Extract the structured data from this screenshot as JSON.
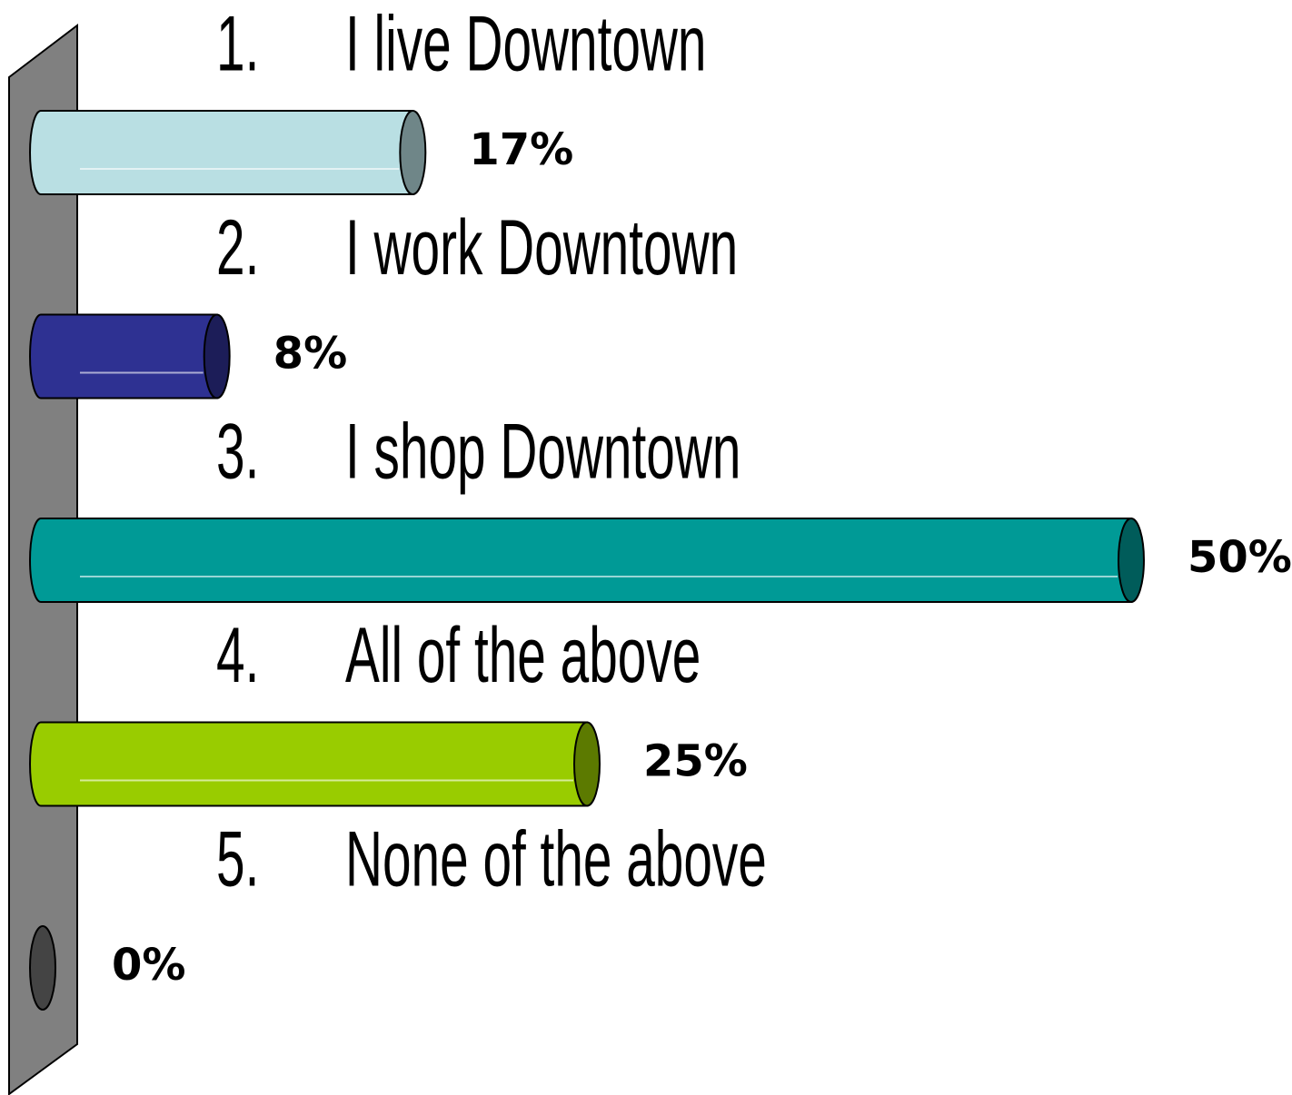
{
  "chart_data": {
    "type": "bar",
    "category_numbers": [
      "1.",
      "2.",
      "3.",
      "4.",
      "5."
    ],
    "categories": [
      "I live Downtown",
      "I work Downtown",
      "I shop Downtown",
      "All of the above",
      "None of the above"
    ],
    "values": [
      17,
      8,
      50,
      25,
      0
    ],
    "value_labels": [
      "17%",
      "8%",
      "50%",
      "25%",
      "0%"
    ],
    "colors": [
      "#b9dfe3",
      "#2e3192",
      "#009a96",
      "#99cc00",
      "#555555"
    ]
  }
}
